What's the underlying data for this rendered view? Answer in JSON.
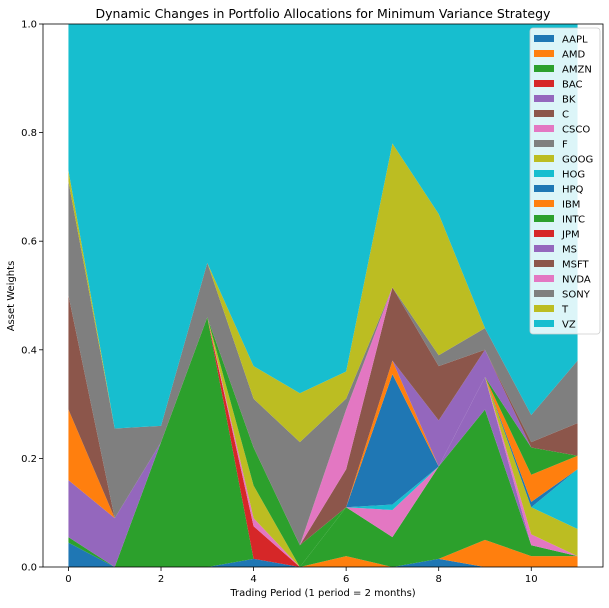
{
  "chart_data": {
    "type": "area",
    "stacked": true,
    "title": "Dynamic Changes in Portfolio Allocations for Minimum Variance Strategy",
    "xlabel": "Trading Period (1 period = 2 months)",
    "ylabel": "Asset Weights",
    "xlim": [
      -0.55,
      11.55
    ],
    "ylim": [
      0,
      1.0
    ],
    "xticks": [
      0,
      2,
      4,
      6,
      8,
      10
    ],
    "yticks": [
      0.0,
      0.2,
      0.4,
      0.6,
      0.8,
      1.0
    ],
    "legend_position": "top-right",
    "x": [
      0,
      1,
      2,
      3,
      4,
      5,
      6,
      7,
      8,
      9,
      10,
      11
    ],
    "series": [
      {
        "name": "AAPL",
        "color": "#1f77b4",
        "values": [
          0.045,
          0.0,
          0.0,
          0.0,
          0.015,
          0.0,
          0.0,
          0.0,
          0.015,
          0.0,
          0.0,
          0.0
        ]
      },
      {
        "name": "AMD",
        "color": "#ff7f0e",
        "values": [
          0.0,
          0.0,
          0.0,
          0.0,
          0.0,
          0.0,
          0.02,
          0.0,
          0.0,
          0.05,
          0.02,
          0.02
        ]
      },
      {
        "name": "AMZN",
        "color": "#2ca02c",
        "values": [
          0.01,
          0.0,
          0.23,
          0.46,
          0.0,
          0.0,
          0.09,
          0.055,
          0.17,
          0.24,
          0.02,
          0.0
        ]
      },
      {
        "name": "BAC",
        "color": "#d62728",
        "values": [
          0.0,
          0.0,
          0.0,
          0.0,
          0.06,
          0.0,
          0.0,
          0.0,
          0.0,
          0.0,
          0.0,
          0.0
        ]
      },
      {
        "name": "BK",
        "color": "#9467bd",
        "values": [
          0.105,
          0.09,
          0.0,
          0.0,
          0.0,
          0.0,
          0.0,
          0.0,
          0.0,
          0.06,
          0.0,
          0.0
        ]
      },
      {
        "name": "C",
        "color": "#8c564b",
        "values": [
          0.0,
          0.0,
          0.0,
          0.0,
          0.0,
          0.0,
          0.0,
          0.0,
          0.0,
          0.0,
          0.0,
          0.0
        ]
      },
      {
        "name": "CSCO",
        "color": "#e377c2",
        "values": [
          0.0,
          0.0,
          0.0,
          0.0,
          0.015,
          0.0,
          0.0,
          0.05,
          0.0,
          0.0,
          0.02,
          0.0
        ]
      },
      {
        "name": "F",
        "color": "#7f7f7f",
        "values": [
          0.0,
          0.0,
          0.0,
          0.0,
          0.0,
          0.0,
          0.0,
          0.0,
          0.0,
          0.0,
          0.0,
          0.0
        ]
      },
      {
        "name": "GOOG",
        "color": "#bcbd22",
        "values": [
          0.0,
          0.0,
          0.0,
          0.0,
          0.06,
          0.0,
          0.0,
          0.0,
          0.0,
          0.0,
          0.05,
          0.05
        ]
      },
      {
        "name": "HOG",
        "color": "#17becf",
        "values": [
          0.0,
          0.0,
          0.0,
          0.0,
          0.0,
          0.0,
          0.0,
          0.01,
          0.0,
          0.0,
          0.0,
          0.11
        ]
      },
      {
        "name": "HPQ",
        "color": "#1f77b4",
        "values": [
          0.0,
          0.0,
          0.0,
          0.0,
          0.0,
          0.0,
          0.0,
          0.24,
          0.0,
          0.0,
          0.01,
          0.0
        ]
      },
      {
        "name": "IBM",
        "color": "#ff7f0e",
        "values": [
          0.13,
          0.0,
          0.0,
          0.0,
          0.0,
          0.0,
          0.0,
          0.025,
          0.0,
          0.0,
          0.05,
          0.025
        ]
      },
      {
        "name": "INTC",
        "color": "#2ca02c",
        "values": [
          0.0,
          0.0,
          0.0,
          0.0,
          0.07,
          0.04,
          0.0,
          0.0,
          0.0,
          0.0,
          0.05,
          0.0
        ]
      },
      {
        "name": "JPM",
        "color": "#d62728",
        "values": [
          0.0,
          0.0,
          0.0,
          0.0,
          0.0,
          0.0,
          0.0,
          0.0,
          0.0,
          0.0,
          0.0,
          0.0
        ]
      },
      {
        "name": "MS",
        "color": "#9467bd",
        "values": [
          0.0,
          0.0,
          0.0,
          0.0,
          0.0,
          0.0,
          0.0,
          0.0,
          0.085,
          0.05,
          0.0,
          0.0
        ]
      },
      {
        "name": "MSFT",
        "color": "#8c564b",
        "values": [
          0.21,
          0.0,
          0.0,
          0.0,
          0.0,
          0.0,
          0.07,
          0.135,
          0.1,
          0.0,
          0.01,
          0.06
        ]
      },
      {
        "name": "NVDA",
        "color": "#e377c2",
        "values": [
          0.0,
          0.0,
          0.0,
          0.0,
          0.0,
          0.0,
          0.11,
          0.0,
          0.0,
          0.0,
          0.0,
          0.0
        ]
      },
      {
        "name": "SONY",
        "color": "#7f7f7f",
        "values": [
          0.21,
          0.165,
          0.03,
          0.1,
          0.09,
          0.19,
          0.02,
          0.0,
          0.02,
          0.04,
          0.05,
          0.115
        ]
      },
      {
        "name": "T",
        "color": "#bcbd22",
        "values": [
          0.02,
          0.0,
          0.0,
          0.0,
          0.06,
          0.09,
          0.05,
          0.265,
          0.26,
          0.0,
          0.0,
          0.0
        ]
      },
      {
        "name": "VZ",
        "color": "#17becf",
        "values": [
          0.27,
          0.745,
          0.74,
          0.44,
          0.63,
          0.68,
          0.64,
          0.22,
          0.35,
          0.56,
          0.72,
          0.62
        ]
      }
    ]
  }
}
